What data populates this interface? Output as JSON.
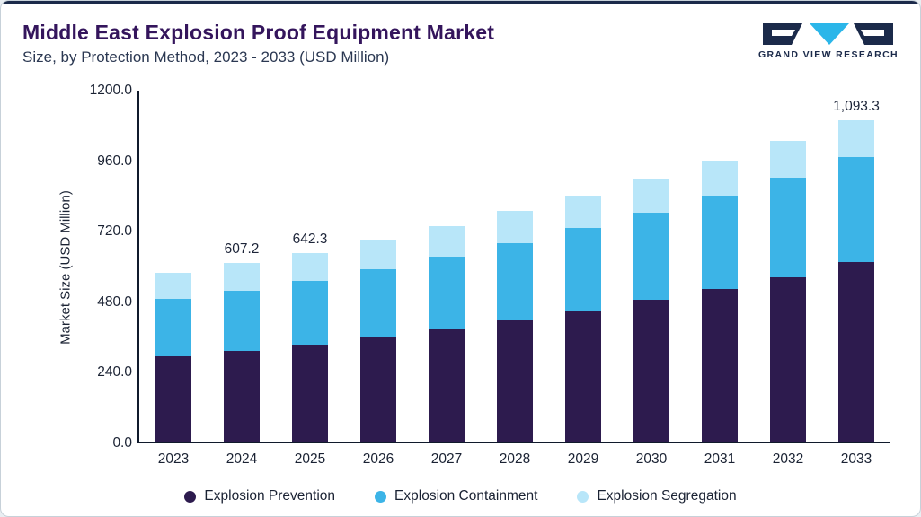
{
  "header": {
    "title": "Middle East Explosion Proof Equipment Market",
    "subtitle": "Size, by Protection Method, 2023 - 2033 (USD Million)",
    "logo_text": "GRAND VIEW RESEARCH"
  },
  "colors": {
    "accent_top_bar": "#1b2a4a",
    "title_text": "#34155c",
    "axis_line": "#101a2c",
    "logo_navy": "#1b2a4a",
    "logo_teal": "#2bb6e9"
  },
  "chart_data": {
    "type": "bar",
    "stacked": true,
    "title": "Middle East Explosion Proof Equipment Market Size, by Protection Method, 2023 - 2033 (USD Million)",
    "xlabel": "",
    "ylabel": "Market Size (USD Million)",
    "ylim": [
      0,
      1200
    ],
    "ytick_step": 240,
    "yticks_top_to_bottom": [
      "1200.0",
      "960.0",
      "720.0",
      "480.0",
      "240.0",
      "0.0"
    ],
    "grid": false,
    "legend_position": "bottom",
    "categories": [
      "2023",
      "2024",
      "2025",
      "2026",
      "2027",
      "2028",
      "2029",
      "2030",
      "2031",
      "2032",
      "2033"
    ],
    "series": [
      {
        "name": "Explosion Prevention",
        "color": "#2d1b4e",
        "values": [
          289.0,
          308.0,
          329.0,
          355.0,
          383.0,
          413.0,
          446.0,
          481.0,
          518.0,
          558.0,
          610.0
        ]
      },
      {
        "name": "Explosion Containment",
        "color": "#3cb4e7",
        "values": [
          196.0,
          206.0,
          218.0,
          232.0,
          247.0,
          263.0,
          280.0,
          299.0,
          319.0,
          341.0,
          358.3
        ]
      },
      {
        "name": "Explosion Segregation",
        "color": "#b8e6f9",
        "values": [
          90.4,
          93.2,
          95.3,
          99.0,
          104.0,
          108.0,
          112.0,
          116.0,
          120.0,
          124.0,
          125.0
        ]
      }
    ],
    "totals": [
      575.4,
      607.2,
      642.3,
      686.0,
      734.0,
      784.0,
      838.0,
      896.0,
      957.0,
      1023.0,
      1093.3
    ],
    "bar_value_labels": [
      "",
      "607.2",
      "642.3",
      "",
      "",
      "",
      "",
      "",
      "",
      "",
      "1,093.3"
    ]
  }
}
